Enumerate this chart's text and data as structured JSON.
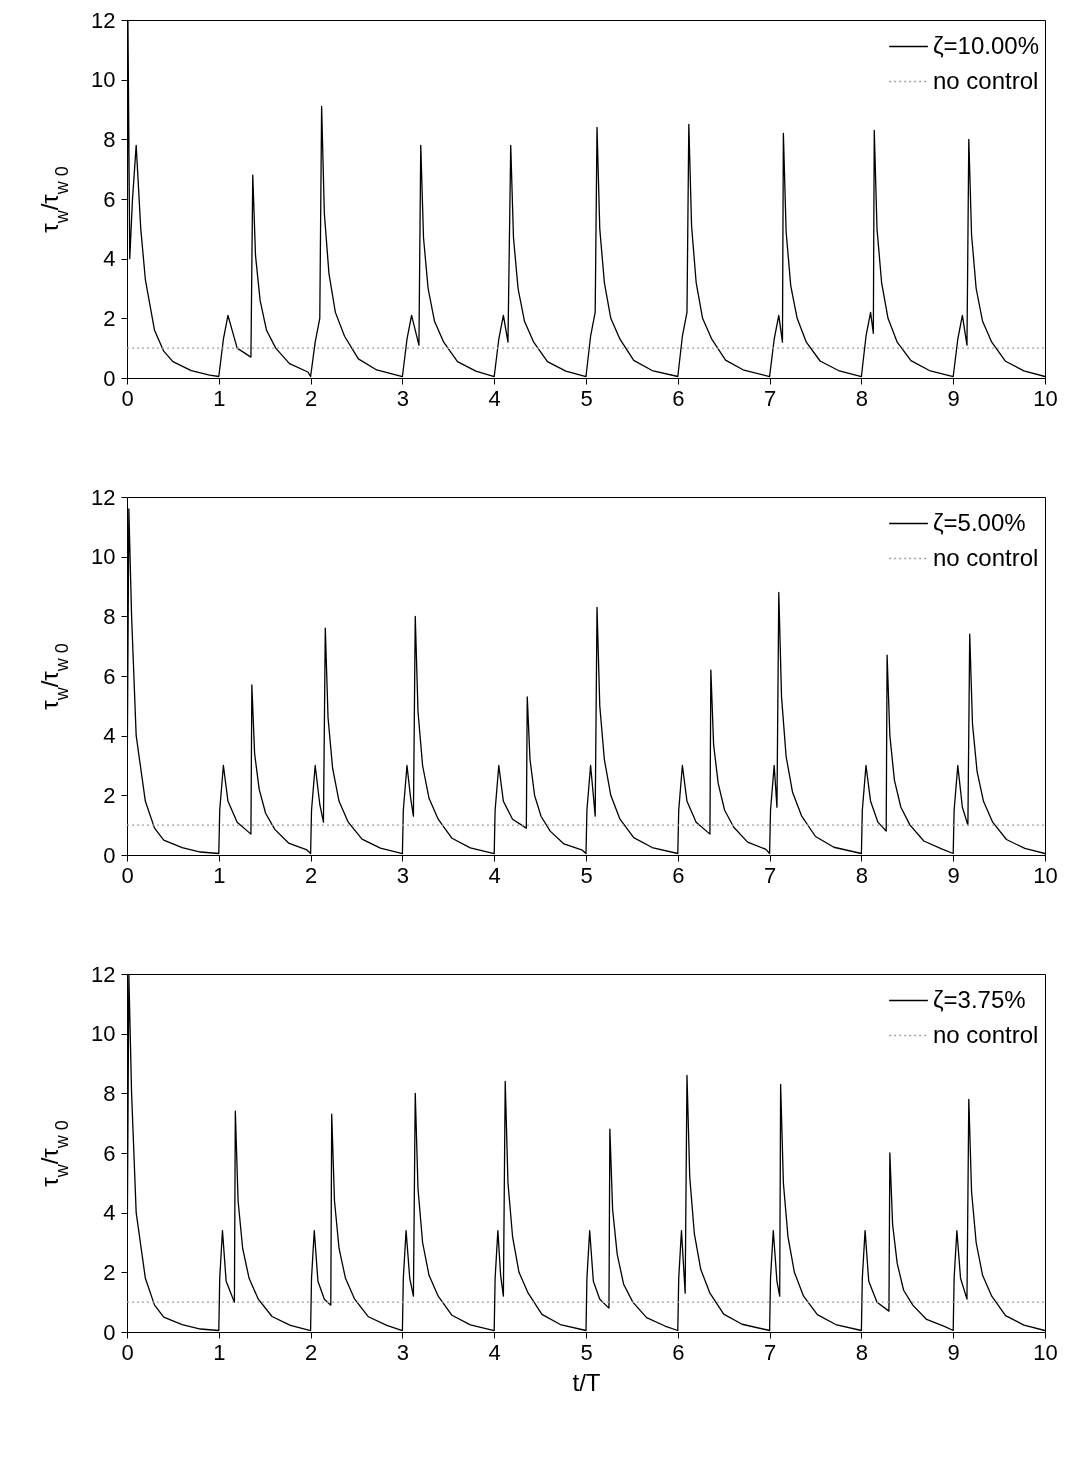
{
  "chart_data": [
    {
      "type": "line",
      "xlim": [
        0,
        10
      ],
      "xticks": [
        0,
        1,
        2,
        3,
        4,
        5,
        6,
        7,
        8,
        9,
        10
      ],
      "ylim": [
        0,
        12
      ],
      "yticks": [
        0,
        2,
        4,
        6,
        8,
        10,
        12
      ],
      "ylabel": "τ$_{w}$/τ$_{w 0}$",
      "legend": "top right",
      "grid": false,
      "series": [
        {
          "name": "ζ=10.00%",
          "color": "#000000",
          "line_style": "solid",
          "x": [
            0,
            0.01,
            0.03,
            0.06,
            0.1,
            0.15,
            0.2,
            0.3,
            0.4,
            0.5,
            0.7,
            0.9,
            1,
            1.05,
            1.1,
            1.2,
            1.35,
            1.37,
            1.4,
            1.45,
            1.52,
            1.62,
            1.77,
            1.97,
            2,
            2.05,
            2.1,
            2.12,
            2.15,
            2.2,
            2.27,
            2.37,
            2.52,
            2.72,
            3,
            3.05,
            3.1,
            3.18,
            3.2,
            3.23,
            3.28,
            3.35,
            3.45,
            3.6,
            3.8,
            4,
            4.05,
            4.1,
            4.15,
            4.18,
            4.21,
            4.26,
            4.33,
            4.43,
            4.58,
            4.78,
            5,
            5.05,
            5.1,
            5.12,
            5.15,
            5.2,
            5.27,
            5.37,
            5.52,
            5.72,
            6,
            6.05,
            6.1,
            6.12,
            6.15,
            6.2,
            6.27,
            6.37,
            6.52,
            6.72,
            7,
            7.05,
            7.1,
            7.14,
            7.15,
            7.18,
            7.23,
            7.3,
            7.4,
            7.55,
            7.75,
            8,
            8.05,
            8.1,
            8.13,
            8.14,
            8.17,
            8.22,
            8.29,
            8.39,
            8.54,
            8.74,
            9,
            9.05,
            9.1,
            9.15,
            9.17,
            9.2,
            9.25,
            9.32,
            9.42,
            9.57,
            9.77,
            10
          ],
          "values": [
            1.5,
            12,
            4,
            6,
            7.8,
            5,
            3.3,
            1.6,
            0.9,
            0.55,
            0.25,
            0.1,
            0.05,
            1.3,
            2.1,
            1.0,
            0.7,
            6.8,
            4.1,
            2.6,
            1.6,
            1.0,
            0.48,
            0.2,
            0.05,
            1.2,
            2.0,
            9.1,
            5.5,
            3.5,
            2.2,
            1.4,
            0.64,
            0.27,
            0.05,
            1.3,
            2.1,
            1.1,
            7.8,
            4.7,
            3.0,
            1.9,
            1.2,
            0.55,
            0.23,
            0.05,
            1.3,
            2.1,
            1.2,
            7.8,
            4.7,
            3.0,
            1.9,
            1.2,
            0.55,
            0.23,
            0.05,
            1.4,
            2.2,
            8.4,
            5.0,
            3.2,
            2.0,
            1.3,
            0.59,
            0.25,
            0.05,
            1.4,
            2.2,
            8.5,
            5.1,
            3.2,
            2.0,
            1.3,
            0.6,
            0.26,
            0.05,
            1.3,
            2.1,
            1.2,
            8.2,
            4.9,
            3.1,
            2.0,
            1.2,
            0.57,
            0.25,
            0.05,
            1.4,
            2.2,
            1.5,
            8.3,
            5.0,
            3.2,
            2.0,
            1.2,
            0.58,
            0.25,
            0.05,
            1.3,
            2.1,
            1.1,
            8.0,
            4.8,
            3.0,
            1.9,
            1.2,
            0.56,
            0.24,
            0.05
          ]
        },
        {
          "name": "no control",
          "color": "#a0a0a0",
          "line_style": "dotted",
          "x": [
            0,
            10
          ],
          "values": [
            1,
            1
          ]
        }
      ]
    },
    {
      "type": "line",
      "xlim": [
        0,
        10
      ],
      "xticks": [
        0,
        1,
        2,
        3,
        4,
        5,
        6,
        7,
        8,
        9,
        10
      ],
      "ylim": [
        0,
        12
      ],
      "yticks": [
        0,
        2,
        4,
        6,
        8,
        10,
        12
      ],
      "ylabel": "τ$_{w}$/τ$_{w 0}$",
      "legend": "top right",
      "grid": false,
      "series": [
        {
          "name": "ζ=5.00%",
          "color": "#000000",
          "line_style": "solid",
          "x": [
            0,
            0.02,
            0.05,
            0.1,
            0.2,
            0.3,
            0.4,
            0.6,
            0.8,
            1,
            1.01,
            1.05,
            1.1,
            1.2,
            1.35,
            1.36,
            1.39,
            1.44,
            1.51,
            1.61,
            1.76,
            1.96,
            2,
            2.01,
            2.05,
            2.1,
            2.14,
            2.16,
            2.19,
            2.24,
            2.31,
            2.41,
            2.56,
            2.76,
            3,
            3.01,
            3.05,
            3.09,
            3.12,
            3.14,
            3.17,
            3.22,
            3.29,
            3.39,
            3.54,
            3.74,
            4,
            4.01,
            4.05,
            4.1,
            4.2,
            4.35,
            4.36,
            4.39,
            4.44,
            4.51,
            4.61,
            4.76,
            4.96,
            5,
            5.01,
            5.05,
            5.08,
            5.1,
            5.12,
            5.15,
            5.2,
            5.27,
            5.37,
            5.52,
            5.72,
            6,
            6.01,
            6.05,
            6.1,
            6.2,
            6.35,
            6.36,
            6.39,
            6.44,
            6.51,
            6.61,
            6.76,
            6.96,
            7,
            7.01,
            7.05,
            7.08,
            7.1,
            7.13,
            7.18,
            7.25,
            7.35,
            7.5,
            7.7,
            8,
            8.01,
            8.05,
            8.1,
            8.18,
            8.27,
            8.28,
            8.31,
            8.36,
            8.43,
            8.53,
            8.68,
            8.88,
            9,
            9.01,
            9.05,
            9.1,
            9.16,
            9.18,
            9.21,
            9.26,
            9.33,
            9.43,
            9.58,
            9.78,
            10
          ],
          "values": [
            1.7,
            11.6,
            8,
            4,
            1.8,
            0.9,
            0.5,
            0.25,
            0.1,
            0.05,
            1.5,
            3.0,
            1.8,
            1.1,
            0.7,
            5.7,
            3.4,
            2.2,
            1.4,
            0.86,
            0.4,
            0.17,
            0.05,
            1.5,
            3.0,
            1.7,
            1.1,
            7.6,
            4.6,
            2.9,
            1.8,
            1.1,
            0.53,
            0.23,
            0.05,
            1.5,
            3.0,
            1.9,
            1.3,
            8.0,
            4.8,
            3.0,
            1.9,
            1.2,
            0.56,
            0.24,
            0.05,
            1.5,
            3.0,
            1.8,
            1.2,
            0.9,
            5.3,
            3.2,
            2.0,
            1.3,
            0.8,
            0.37,
            0.16,
            0.05,
            1.5,
            3.0,
            2.0,
            1.3,
            8.3,
            5.0,
            3.2,
            2.0,
            1.2,
            0.58,
            0.25,
            0.05,
            1.5,
            3.0,
            1.8,
            1.1,
            0.7,
            6.2,
            3.7,
            2.4,
            1.5,
            0.93,
            0.43,
            0.19,
            0.05,
            1.5,
            3.0,
            1.6,
            8.8,
            5.3,
            3.3,
            2.1,
            1.3,
            0.62,
            0.26,
            0.05,
            1.5,
            3.0,
            1.8,
            1.1,
            0.8,
            6.7,
            4.0,
            2.5,
            1.6,
            1.0,
            0.47,
            0.2,
            0.05,
            1.5,
            3.0,
            1.6,
            1.0,
            7.4,
            4.4,
            2.8,
            1.8,
            1.1,
            0.52,
            0.22,
            0.05
          ]
        },
        {
          "name": "no control",
          "color": "#a0a0a0",
          "line_style": "dotted",
          "x": [
            0,
            10
          ],
          "values": [
            1,
            1
          ]
        }
      ]
    },
    {
      "type": "line",
      "xlim": [
        0,
        10
      ],
      "xticks": [
        0,
        1,
        2,
        3,
        4,
        5,
        6,
        7,
        8,
        9,
        10
      ],
      "ylim": [
        0,
        12
      ],
      "yticks": [
        0,
        2,
        4,
        6,
        8,
        10,
        12
      ],
      "xlabel": "t/T",
      "ylabel": "τ$_{w}$/τ$_{w 0}$",
      "legend": "top right",
      "grid": false,
      "series": [
        {
          "name": "ζ=3.75%",
          "color": "#000000",
          "line_style": "solid",
          "x": [
            0,
            0.02,
            0.05,
            0.1,
            0.2,
            0.3,
            0.4,
            0.6,
            0.8,
            1,
            1.01,
            1.04,
            1.08,
            1.17,
            1.18,
            1.21,
            1.26,
            1.33,
            1.43,
            1.58,
            1.78,
            2,
            2.01,
            2.04,
            2.08,
            2.15,
            2.22,
            2.23,
            2.26,
            2.31,
            2.38,
            2.48,
            2.63,
            2.83,
            3,
            3.01,
            3.04,
            3.08,
            3.12,
            3.14,
            3.17,
            3.22,
            3.29,
            3.39,
            3.54,
            3.74,
            4,
            4.01,
            4.04,
            4.07,
            4.1,
            4.12,
            4.15,
            4.2,
            4.27,
            4.37,
            4.52,
            4.72,
            5,
            5.01,
            5.04,
            5.08,
            5.15,
            5.25,
            5.26,
            5.29,
            5.34,
            5.41,
            5.51,
            5.66,
            5.86,
            6,
            6.01,
            6.04,
            6.08,
            6.1,
            6.13,
            6.18,
            6.25,
            6.35,
            6.5,
            6.7,
            7,
            7.01,
            7.04,
            7.08,
            7.11,
            7.12,
            7.15,
            7.2,
            7.27,
            7.37,
            7.52,
            7.72,
            8,
            8.01,
            8.04,
            8.08,
            8.17,
            8.3,
            8.31,
            8.34,
            8.39,
            8.46,
            8.56,
            8.71,
            8.91,
            9,
            9.01,
            9.04,
            9.08,
            9.15,
            9.17,
            9.2,
            9.25,
            9.32,
            9.42,
            9.57,
            9.77,
            10
          ],
          "values": [
            1.7,
            12,
            8,
            4,
            1.8,
            0.9,
            0.5,
            0.25,
            0.1,
            0.05,
            1.8,
            3.4,
            1.7,
            1.0,
            7.4,
            4.4,
            2.8,
            1.8,
            1.1,
            0.52,
            0.22,
            0.05,
            1.8,
            3.4,
            1.7,
            1.1,
            0.9,
            7.3,
            4.4,
            2.8,
            1.8,
            1.1,
            0.51,
            0.22,
            0.05,
            1.8,
            3.4,
            1.8,
            1.2,
            8.0,
            4.8,
            3.0,
            1.9,
            1.2,
            0.56,
            0.24,
            0.05,
            1.8,
            3.4,
            1.9,
            1.2,
            8.4,
            5.0,
            3.2,
            2.0,
            1.3,
            0.59,
            0.25,
            0.05,
            1.8,
            3.4,
            1.7,
            1.1,
            0.8,
            6.8,
            4.1,
            2.6,
            1.6,
            1.0,
            0.48,
            0.2,
            0.05,
            1.8,
            3.4,
            1.3,
            8.6,
            5.2,
            3.3,
            2.1,
            1.3,
            0.6,
            0.26,
            0.05,
            1.8,
            3.4,
            1.7,
            1.2,
            8.3,
            5.0,
            3.2,
            2.0,
            1.2,
            0.58,
            0.25,
            0.05,
            1.8,
            3.4,
            1.7,
            1.0,
            0.7,
            6.0,
            3.6,
            2.3,
            1.4,
            0.9,
            0.42,
            0.18,
            0.05,
            1.8,
            3.4,
            1.8,
            1.1,
            7.8,
            4.7,
            3.0,
            1.9,
            1.2,
            0.55,
            0.23,
            0.05
          ]
        },
        {
          "name": "no control",
          "color": "#a0a0a0",
          "line_style": "dotted",
          "x": [
            0,
            10
          ],
          "values": [
            1,
            1
          ]
        }
      ]
    }
  ]
}
